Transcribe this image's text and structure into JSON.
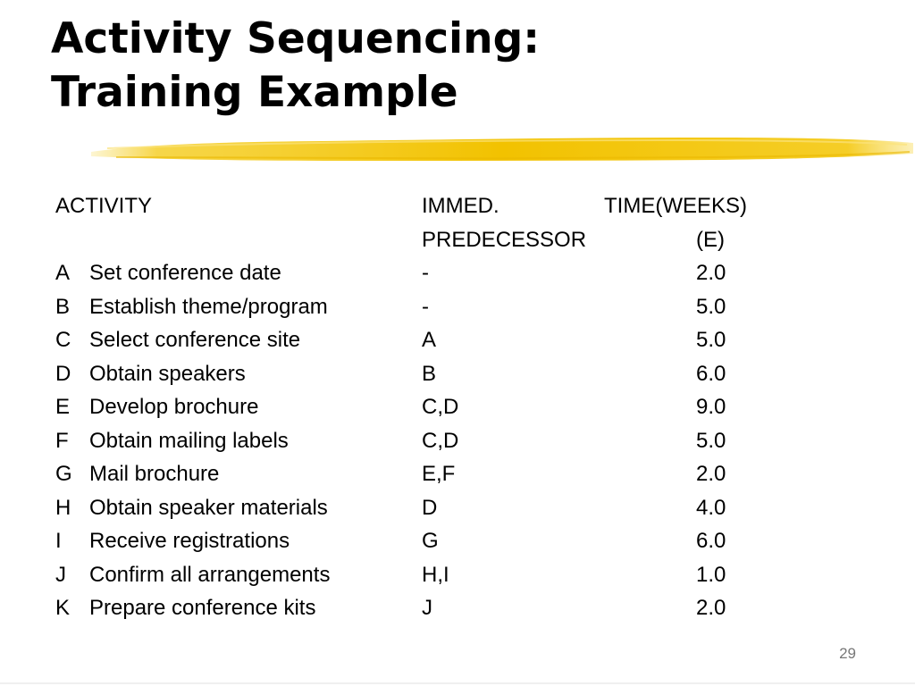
{
  "slide": {
    "title_line1": "Activity Sequencing:",
    "title_line2": "Training Example",
    "highlight_color": "#f2c200",
    "page_number": "29"
  },
  "table": {
    "headers": {
      "activity": "ACTIVITY",
      "pred_line1": "IMMED.",
      "pred_line2": "PREDECESSOR",
      "time_line1": "TIME(WEEKS)",
      "time_line2": "(E)"
    },
    "rows": [
      {
        "id": "A",
        "desc": "Set conference date",
        "pred": "-",
        "time": "2.0"
      },
      {
        "id": "B",
        "desc": "Establish theme/program",
        "pred": "-",
        "time": "5.0"
      },
      {
        "id": "C",
        "desc": "Select conference site",
        "pred": "A",
        "time": "5.0"
      },
      {
        "id": "D",
        "desc": "Obtain speakers",
        "pred": "B",
        "time": "6.0"
      },
      {
        "id": "E",
        "desc": "Develop brochure",
        "pred": "C,D",
        "time": "9.0"
      },
      {
        "id": "F",
        "desc": "Obtain mailing labels",
        "pred": "C,D",
        "time": "5.0"
      },
      {
        "id": "G",
        "desc": "Mail brochure",
        "pred": "E,F",
        "time": "2.0"
      },
      {
        "id": "H",
        "desc": "Obtain speaker materials",
        "pred": "D",
        "time": "4.0"
      },
      {
        "id": "I",
        "desc": "Receive registrations",
        "pred": "G",
        "time": "6.0"
      },
      {
        "id": "J",
        "desc": "Confirm all arrangements",
        "pred": "H,I",
        "time": "1.0"
      },
      {
        "id": "K",
        "desc": "Prepare conference kits",
        "pred": "J",
        "time": "2.0"
      }
    ]
  }
}
